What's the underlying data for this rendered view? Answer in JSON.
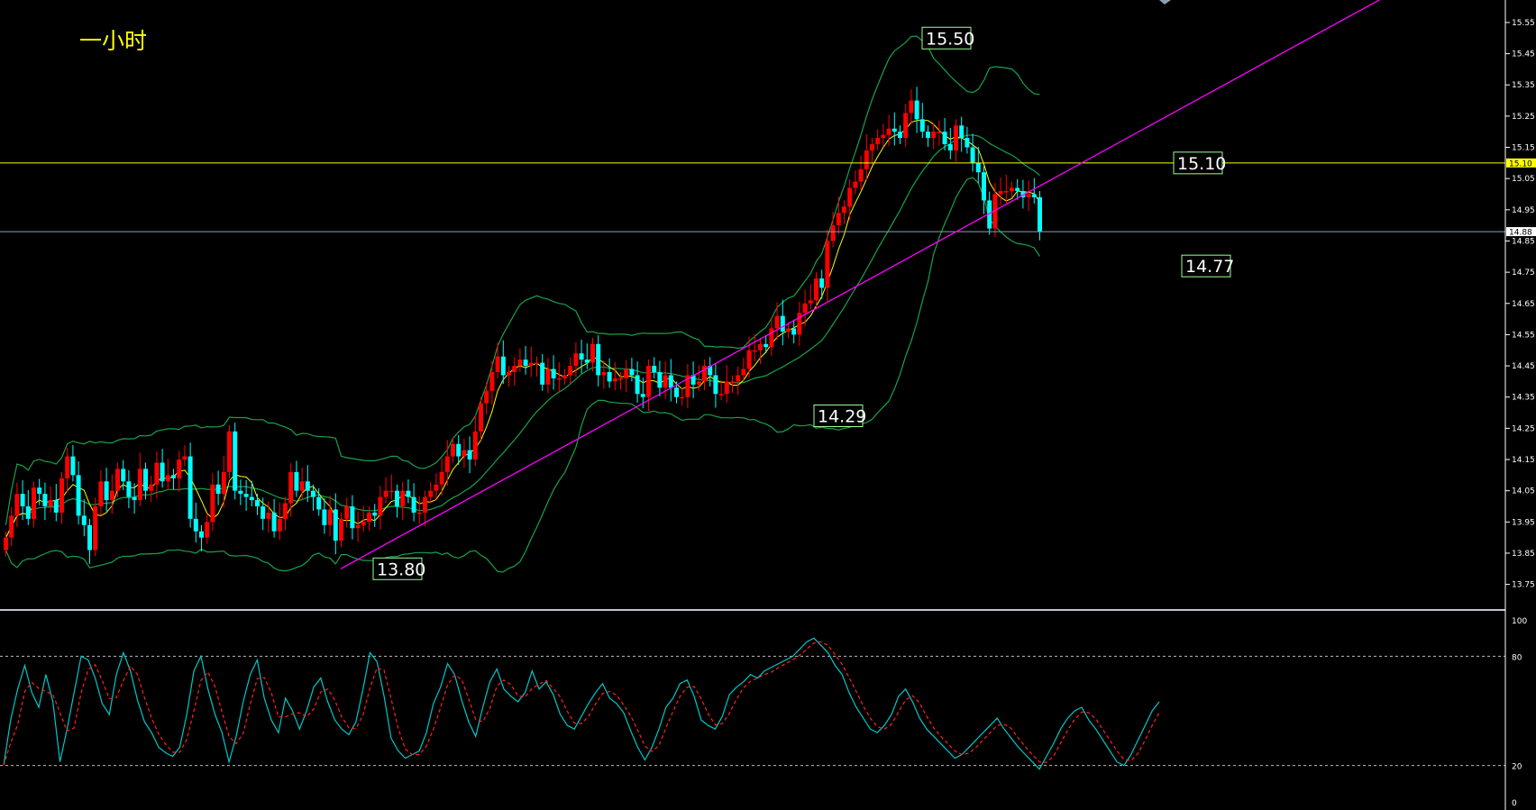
{
  "chart_title": "一小时",
  "colors": {
    "background": "#000000",
    "candle_up": "#ff0000",
    "candle_down": "#00ffff",
    "bollinger": "#16a34a",
    "ma_fast": "#ffff00",
    "trendline": "#ff00ff",
    "horizontal_line_yellow": "#ffff00",
    "horizontal_line_gray": "#8aa0b4",
    "stoch_k": "#00c8c8",
    "stoch_d": "#ff2020",
    "callout_border": "#9aff9a"
  },
  "chart_data": [
    {
      "type": "candlestick",
      "timeframe": "一小时",
      "ylim": [
        13.72,
        15.57
      ],
      "y_ticks": [
        "15.55",
        "15.45",
        "15.35",
        "15.25",
        "15.15",
        "15.05",
        "14.95",
        "14.85",
        "14.75",
        "14.65",
        "14.55",
        "14.45",
        "14.35",
        "14.25",
        "14.15",
        "14.05",
        "13.95",
        "13.85",
        "13.75"
      ],
      "levels": [
        {
          "label": "15.10",
          "value": 15.1,
          "style": "yellow-horizontal",
          "axis_label": "15.10"
        },
        {
          "label": "14.88",
          "value": 14.88,
          "style": "gray-horizontal",
          "axis_label": "14.88"
        }
      ],
      "annotations": [
        {
          "text": "15.50",
          "value": 15.5,
          "kind": "high"
        },
        {
          "text": "15.10",
          "value": 15.1,
          "kind": "level"
        },
        {
          "text": "14.77",
          "value": 14.77,
          "kind": "trendline-projection"
        },
        {
          "text": "14.29",
          "value": 14.29,
          "kind": "swing-low"
        },
        {
          "text": "13.80",
          "value": 13.8,
          "kind": "low"
        }
      ],
      "trendline": {
        "from": {
          "bar": 60,
          "price": 13.8
        },
        "to": {
          "bar": 203,
          "price": 15.2
        }
      },
      "close": [
        13.9,
        13.97,
        14.04,
        14.0,
        13.96,
        14.06,
        14.04,
        14.0,
        14.02,
        13.98,
        14.09,
        14.16,
        14.1,
        13.97,
        13.94,
        13.86,
        14.0,
        14.08,
        14.02,
        14.05,
        14.12,
        14.08,
        14.03,
        14.02,
        14.12,
        14.05,
        14.07,
        14.14,
        14.08,
        14.1,
        14.09,
        14.15,
        14.16,
        13.96,
        13.92,
        13.9,
        13.95,
        14.07,
        14.04,
        14.11,
        14.24,
        14.05,
        14.04,
        14.03,
        14.02,
        14.0,
        13.96,
        13.98,
        13.92,
        13.96,
        14.01,
        14.11,
        14.05,
        14.08,
        14.05,
        14.03,
        13.99,
        13.94,
        13.99,
        13.89,
        13.96,
        14.0,
        13.93,
        13.94,
        13.95,
        13.98,
        13.97,
        14.03,
        14.05,
        14.05,
        14.0,
        14.05,
        14.03,
        13.98,
        13.98,
        14.03,
        14.05,
        14.07,
        14.11,
        14.16,
        14.2,
        14.16,
        14.18,
        14.15,
        14.24,
        14.33,
        14.37,
        14.43,
        14.48,
        14.42,
        14.43,
        14.45,
        14.47,
        14.45,
        14.46,
        14.46,
        14.39,
        14.44,
        14.41,
        14.41,
        14.42,
        14.45,
        14.49,
        14.47,
        14.46,
        14.52,
        14.42,
        14.43,
        14.4,
        14.41,
        14.41,
        14.44,
        14.42,
        14.36,
        14.35,
        14.45,
        14.43,
        14.38,
        14.42,
        14.38,
        14.35,
        14.35,
        14.42,
        14.39,
        14.4,
        14.45,
        14.42,
        14.36,
        14.36,
        14.4,
        14.4,
        14.42,
        14.44,
        14.5,
        14.5,
        14.52,
        14.51,
        14.57,
        14.61,
        14.56,
        14.57,
        14.55,
        14.62,
        14.65,
        14.66,
        14.73,
        14.7,
        14.85,
        14.9,
        14.94,
        14.96,
        15.02,
        15.04,
        15.08,
        15.14,
        15.16,
        15.18,
        15.19,
        15.21,
        15.2,
        15.18,
        15.26,
        15.3,
        15.24,
        15.2,
        15.18,
        15.2,
        15.2,
        15.16,
        15.14,
        15.22,
        15.18,
        15.15,
        15.1,
        15.07,
        14.98,
        14.89,
        15.0,
        15.01,
        15.01,
        15.02,
        15.01,
        14.99,
        15.0,
        14.99,
        14.88
      ],
      "stochastic": {
        "levels": [
          80,
          20
        ],
        "y_ticks": [
          "100",
          "80",
          "20",
          "0"
        ],
        "k_values": [
          20,
          45,
          62,
          75,
          60,
          52,
          70,
          55,
          22,
          40,
          60,
          80,
          78,
          68,
          54,
          48,
          70,
          82,
          72,
          56,
          44,
          38,
          30,
          27,
          25,
          30,
          48,
          72,
          80,
          62,
          48,
          38,
          22,
          36,
          55,
          70,
          78,
          57,
          45,
          38,
          57,
          50,
          40,
          50,
          63,
          68,
          55,
          45,
          40,
          37,
          44,
          62,
          82,
          77,
          58,
          35,
          28,
          24,
          26,
          28,
          38,
          54,
          63,
          76,
          70,
          56,
          44,
          36,
          52,
          66,
          73,
          62,
          58,
          55,
          60,
          72,
          62,
          66,
          59,
          48,
          42,
          40,
          47,
          54,
          60,
          65,
          57,
          54,
          49,
          39,
          30,
          23,
          30,
          40,
          52,
          57,
          65,
          67,
          58,
          45,
          42,
          40,
          47,
          59,
          63,
          66,
          70,
          68,
          72,
          74,
          76,
          78,
          80,
          84,
          88,
          90,
          86,
          82,
          75,
          70,
          60,
          52,
          46,
          40,
          38,
          42,
          48,
          58,
          62,
          55,
          46,
          40,
          36,
          32,
          28,
          24,
          26,
          30,
          34,
          38,
          42,
          46,
          40,
          35,
          30,
          26,
          22,
          18,
          25,
          32,
          40,
          46,
          50,
          52,
          45,
          40,
          34,
          28,
          22,
          20,
          26,
          34,
          42,
          50,
          55
        ]
      }
    }
  ]
}
